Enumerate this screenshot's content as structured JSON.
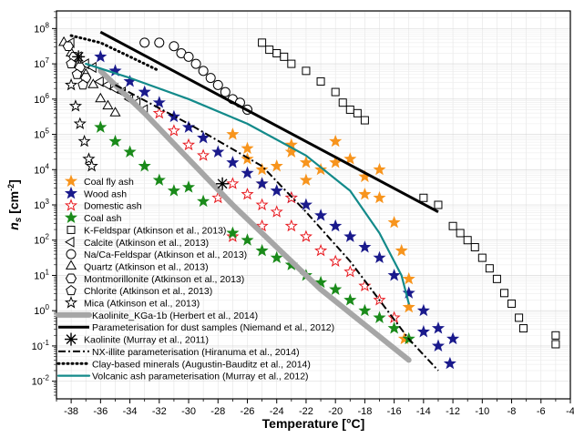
{
  "chart_data": {
    "type": "scatter",
    "title": "",
    "xlabel": "Temperature [°C]",
    "ylabel": "n_s [cm^-2]",
    "ylabel_main": "n",
    "ylabel_sub": "s",
    "ylabel_unit_open": " [cm",
    "ylabel_unit_sup": "-2",
    "ylabel_unit_close": "]",
    "xlim": [
      -39,
      -4
    ],
    "ylim_log10": [
      -2.5,
      8.5
    ],
    "y_scale": "log",
    "grid": true,
    "legend_position": "left",
    "x_ticks": [
      -38,
      -36,
      -34,
      -32,
      -30,
      -28,
      -26,
      -24,
      -22,
      -20,
      -18,
      -16,
      -14,
      -12,
      -10,
      -8,
      -6,
      -4
    ],
    "x_tick_labels": [
      "-38",
      "-36",
      "-34",
      "-32",
      "-30",
      "-28",
      "-26",
      "-24",
      "-22",
      "-20",
      "-18",
      "-16",
      "-14",
      "-12",
      "-10",
      "-8",
      "-6",
      "-4"
    ],
    "y_ticks_exp": [
      -2,
      -1,
      0,
      1,
      2,
      3,
      4,
      5,
      6,
      7,
      8
    ],
    "y_tick_labels": [
      "10-2",
      "10-1",
      "100",
      "101",
      "102",
      "103",
      "104",
      "105",
      "106",
      "107",
      "108"
    ],
    "y_tick_base": "10",
    "y_tick_exps": [
      "-2",
      "-1",
      "0",
      "1",
      "2",
      "3",
      "4",
      "5",
      "6",
      "7",
      "8"
    ],
    "series": [
      {
        "name": "Coal fly ash",
        "kind": "markers",
        "marker": "star",
        "color": "#f7941d",
        "filled": true,
        "points": [
          [
            -27,
            5
          ],
          [
            -26,
            4.3
          ],
          [
            -25,
            4.0
          ],
          [
            -24,
            4.1
          ],
          [
            -23,
            4.5
          ],
          [
            -22,
            4.2
          ],
          [
            -21,
            4.0
          ],
          [
            -20,
            4.8
          ],
          [
            -19,
            4.3
          ],
          [
            -18,
            3.8
          ],
          [
            -17,
            3.2
          ],
          [
            -16,
            2.5
          ],
          [
            -15.5,
            1.7
          ],
          [
            -15,
            0.9
          ],
          [
            -15,
            0.1
          ],
          [
            -15.3,
            -0.8
          ],
          [
            -26,
            4.6
          ],
          [
            -23,
            4.7
          ],
          [
            -20,
            4.2
          ],
          [
            -18,
            3.3
          ],
          [
            -22,
            3.7
          ],
          [
            -25,
            3.6
          ],
          [
            -17,
            4.0
          ]
        ]
      },
      {
        "name": "Wood ash",
        "kind": "markers",
        "marker": "star",
        "color": "#1a1a8c",
        "filled": true,
        "points": [
          [
            -36,
            7.2
          ],
          [
            -35,
            6.8
          ],
          [
            -34,
            6.5
          ],
          [
            -33,
            6.2
          ],
          [
            -32,
            5.9
          ],
          [
            -31,
            5.5
          ],
          [
            -30,
            5.2
          ],
          [
            -29,
            4.9
          ],
          [
            -28,
            4.5
          ],
          [
            -27,
            4.2
          ],
          [
            -26,
            3.9
          ],
          [
            -25,
            3.6
          ],
          [
            -24,
            3.4
          ],
          [
            -23,
            3.2
          ],
          [
            -22,
            3.0
          ],
          [
            -21,
            2.7
          ],
          [
            -20,
            2.4
          ],
          [
            -19,
            2.1
          ],
          [
            -18,
            1.8
          ],
          [
            -17,
            1.5
          ],
          [
            -16,
            1.0
          ],
          [
            -15,
            0.5
          ],
          [
            -14,
            0.0
          ],
          [
            -13,
            -0.5
          ],
          [
            -12,
            -0.8
          ],
          [
            -12.2,
            -1.5
          ],
          [
            -13,
            -1.0
          ],
          [
            -14,
            -0.6
          ]
        ]
      },
      {
        "name": "Domestic ash",
        "kind": "markers",
        "marker": "star",
        "color": "#e8191f",
        "filled": false,
        "points": [
          [
            -32,
            5.6
          ],
          [
            -31,
            5.1
          ],
          [
            -30,
            4.7
          ],
          [
            -29,
            4.4
          ],
          [
            -28,
            3.2
          ],
          [
            -27,
            3.6
          ],
          [
            -26,
            3.3
          ],
          [
            -25,
            3.0
          ],
          [
            -24,
            2.8
          ],
          [
            -23,
            2.4
          ],
          [
            -22,
            2.1
          ],
          [
            -21,
            1.7
          ],
          [
            -20,
            1.4
          ],
          [
            -19,
            1.1
          ],
          [
            -18,
            0.7
          ],
          [
            -17,
            0.3
          ],
          [
            -16,
            -0.2
          ],
          [
            -23,
            3.2
          ],
          [
            -25,
            2.4
          ],
          [
            -27,
            2.1
          ]
        ]
      },
      {
        "name": "Coal ash",
        "kind": "markers",
        "marker": "star",
        "color": "#1a8a1a",
        "filled": true,
        "points": [
          [
            -36,
            5.2
          ],
          [
            -35,
            4.8
          ],
          [
            -34,
            4.5
          ],
          [
            -33,
            4.1
          ],
          [
            -32,
            3.7
          ],
          [
            -31,
            3.4
          ],
          [
            -30,
            3.5
          ],
          [
            -29,
            3.1
          ],
          [
            -27,
            2.2
          ],
          [
            -26,
            2.0
          ],
          [
            -25,
            1.7
          ],
          [
            -24,
            1.5
          ],
          [
            -23,
            1.3
          ],
          [
            -22,
            1.0
          ],
          [
            -21,
            0.8
          ],
          [
            -20,
            0.6
          ],
          [
            -19,
            0.3
          ],
          [
            -18,
            0.0
          ],
          [
            -17,
            -0.2
          ],
          [
            -16,
            -0.5
          ],
          [
            -15,
            -0.8
          ]
        ]
      },
      {
        "name": "K-Feldspar (Atkinson et al., 2013)",
        "kind": "markers",
        "marker": "square",
        "color": "#000000",
        "filled": false,
        "points": [
          [
            -25,
            7.6
          ],
          [
            -24.5,
            7.4
          ],
          [
            -24,
            7.3
          ],
          [
            -23.5,
            7.2
          ],
          [
            -23,
            7.0
          ],
          [
            -22,
            6.8
          ],
          [
            -21,
            6.5
          ],
          [
            -20,
            6.2
          ],
          [
            -19.5,
            5.9
          ],
          [
            -19,
            5.7
          ],
          [
            -18.5,
            5.6
          ],
          [
            -18,
            5.4
          ],
          [
            -14,
            3.2
          ],
          [
            -13,
            3.0
          ],
          [
            -12,
            2.4
          ],
          [
            -11.5,
            2.2
          ],
          [
            -11,
            2.0
          ],
          [
            -10.5,
            1.8
          ],
          [
            -10,
            1.5
          ],
          [
            -9.5,
            1.2
          ],
          [
            -9,
            0.9
          ],
          [
            -8.5,
            0.5
          ],
          [
            -8,
            0.2
          ],
          [
            -7.5,
            -0.2
          ],
          [
            -7.2,
            -0.5
          ],
          [
            -5,
            -0.7
          ],
          [
            -5,
            -0.95
          ]
        ]
      },
      {
        "name": "Calcite (Atkinson et al., 2013)",
        "kind": "markers",
        "marker": "triangle-left",
        "color": "#000000",
        "filled": false,
        "points": [
          [
            -38,
            7.6
          ],
          [
            -37.5,
            7.2
          ],
          [
            -37,
            7.0
          ],
          [
            -36.5,
            6.9
          ],
          [
            -36,
            6.5
          ],
          [
            -35.5,
            6.4
          ],
          [
            -35,
            6.3
          ],
          [
            -34.5,
            6.2
          ],
          [
            -34,
            6.0
          ],
          [
            -33.5,
            5.9
          ],
          [
            -33,
            5.7
          ]
        ]
      },
      {
        "name": "Na/Ca-Feldspar (Atkinson et al., 2013)",
        "kind": "markers",
        "marker": "circle",
        "color": "#000000",
        "filled": false,
        "points": [
          [
            -33,
            7.6
          ],
          [
            -32,
            7.6
          ],
          [
            -31,
            7.5
          ],
          [
            -30.5,
            7.3
          ],
          [
            -30,
            7.2
          ],
          [
            -29.5,
            7.0
          ],
          [
            -29,
            6.8
          ],
          [
            -28.5,
            6.6
          ],
          [
            -28,
            6.4
          ],
          [
            -27.5,
            6.2
          ],
          [
            -27,
            6.0
          ],
          [
            -26.5,
            5.9
          ],
          [
            -26,
            5.7
          ]
        ]
      },
      {
        "name": "Quartz (Atkinson et al., 2013)",
        "kind": "markers",
        "marker": "triangle-up",
        "color": "#000000",
        "filled": false,
        "points": [
          [
            -38.5,
            7.6
          ],
          [
            -38,
            7.3
          ],
          [
            -37.5,
            7.0
          ],
          [
            -37,
            6.7
          ],
          [
            -36.5,
            6.4
          ],
          [
            -36,
            6.0
          ],
          [
            -35.5,
            5.8
          ],
          [
            -35,
            5.6
          ]
        ]
      },
      {
        "name": "Montmorillonite (Atkinson et al., 2013)",
        "kind": "markers",
        "marker": "hexagon",
        "color": "#000000",
        "filled": false,
        "points": [
          [
            -38.2,
            7.5
          ],
          [
            -37.8,
            7.2
          ],
          [
            -37.4,
            6.9
          ],
          [
            -37,
            6.6
          ]
        ]
      },
      {
        "name": "Chlorite (Atkinson et al., 2013)",
        "kind": "markers",
        "marker": "pentagon",
        "color": "#000000",
        "filled": false,
        "points": [
          [
            -38,
            7.0
          ],
          [
            -37.6,
            6.7
          ],
          [
            -37.2,
            6.4
          ]
        ]
      },
      {
        "name": "Mica (Atkinson et al., 2013)",
        "kind": "markers",
        "marker": "star",
        "color": "#000000",
        "filled": false,
        "points": [
          [
            -38,
            6.4
          ],
          [
            -37.7,
            5.8
          ],
          [
            -37.4,
            5.3
          ],
          [
            -37.1,
            4.8
          ],
          [
            -36.8,
            4.3
          ],
          [
            -36.6,
            4.1
          ]
        ]
      },
      {
        "name": "Kaolinite_KGa-1b (Herbert et al., 2014)",
        "kind": "line",
        "style": "thick-gray",
        "color": "#a6a6a6",
        "points": [
          [
            -36,
            6.8
          ],
          [
            -33,
            5.6
          ],
          [
            -30,
            4.3
          ],
          [
            -27,
            3.0
          ],
          [
            -24,
            1.8
          ],
          [
            -21,
            0.6
          ],
          [
            -18,
            -0.4
          ],
          [
            -15,
            -1.4
          ]
        ]
      },
      {
        "name": "Parameterisation for dust samples (Niemand et al., 2012)",
        "kind": "line",
        "style": "thick-black",
        "color": "#000000",
        "points": [
          [
            -36,
            7.9
          ],
          [
            -13,
            2.8
          ]
        ]
      },
      {
        "name": "Kaolinite (Murray et al., 2011)",
        "kind": "markers",
        "marker": "asterisk",
        "color": "#000000",
        "filled": false,
        "points": [
          [
            -37.5,
            7.2
          ],
          [
            -27.7,
            3.6
          ]
        ]
      },
      {
        "name": "NX-illite parameterisation (Hiranuma et al., 2014)",
        "kind": "line",
        "style": "dashdot",
        "color": "#000000",
        "points": [
          [
            -35,
            6.4
          ],
          [
            -30,
            5.3
          ],
          [
            -25,
            4.1
          ],
          [
            -22,
            2.8
          ],
          [
            -19,
            1.4
          ],
          [
            -17,
            0.3
          ],
          [
            -15,
            -0.8
          ],
          [
            -13,
            -1.7
          ]
        ]
      },
      {
        "name": "Clay-based minerals (Augustin-Bauditz et al., 2014)",
        "kind": "line",
        "style": "dotted",
        "color": "#000000",
        "points": [
          [
            -38,
            7.8
          ],
          [
            -36,
            7.6
          ],
          [
            -34,
            7.2
          ],
          [
            -32,
            6.8
          ]
        ]
      },
      {
        "name": "Volcanic ash parameterisation (Murray et al., 2012)",
        "kind": "line",
        "style": "teal",
        "color": "#138a8a",
        "points": [
          [
            -37,
            7.0
          ],
          [
            -34,
            6.6
          ],
          [
            -30,
            6.0
          ],
          [
            -26,
            5.3
          ],
          [
            -22,
            4.4
          ],
          [
            -19,
            3.4
          ],
          [
            -17,
            2.2
          ],
          [
            -15.5,
            1.0
          ],
          [
            -15,
            0.2
          ]
        ]
      }
    ]
  }
}
